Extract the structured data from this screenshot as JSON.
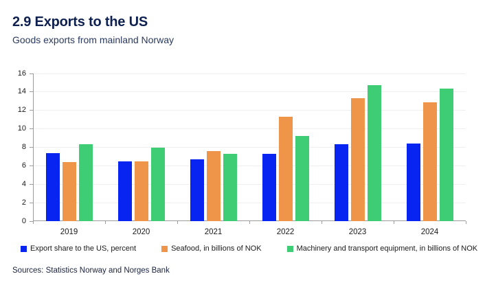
{
  "title": "2.9 Exports to the US",
  "subtitle": "Goods exports from mainland Norway",
  "source": "Sources: Statistics Norway and Norges Bank",
  "colors": {
    "blue": "#0724f0",
    "orange": "#ee954a",
    "green": "#3ecc74",
    "title_text": "#0e2050",
    "axis_line": "#9b9b9b",
    "grid_line": "#f0eeee"
  },
  "chart_data": {
    "type": "bar",
    "title": "2.9 Exports to the US",
    "subtitle": "Goods exports from mainland Norway",
    "categories": [
      "2019",
      "2020",
      "2021",
      "2022",
      "2023",
      "2024"
    ],
    "series": [
      {
        "name": "Export share to the US, percent",
        "color": "#0724f0",
        "values": [
          7.4,
          6.5,
          6.7,
          7.3,
          8.3,
          8.4
        ]
      },
      {
        "name": "Seafood, in billions of NOK",
        "color": "#ee954a",
        "values": [
          6.4,
          6.5,
          7.6,
          11.3,
          13.3,
          12.9
        ]
      },
      {
        "name": "Machinery and transport equipment, in billions of NOK",
        "color": "#3ecc74",
        "values": [
          8.3,
          8.0,
          7.3,
          9.2,
          14.7,
          14.4
        ]
      }
    ],
    "xlabel": "",
    "ylabel": "",
    "ylim": [
      0,
      16
    ],
    "yticks": [
      0,
      2,
      4,
      6,
      8,
      10,
      12,
      14,
      16
    ],
    "grid": true,
    "legend_position": "bottom"
  }
}
